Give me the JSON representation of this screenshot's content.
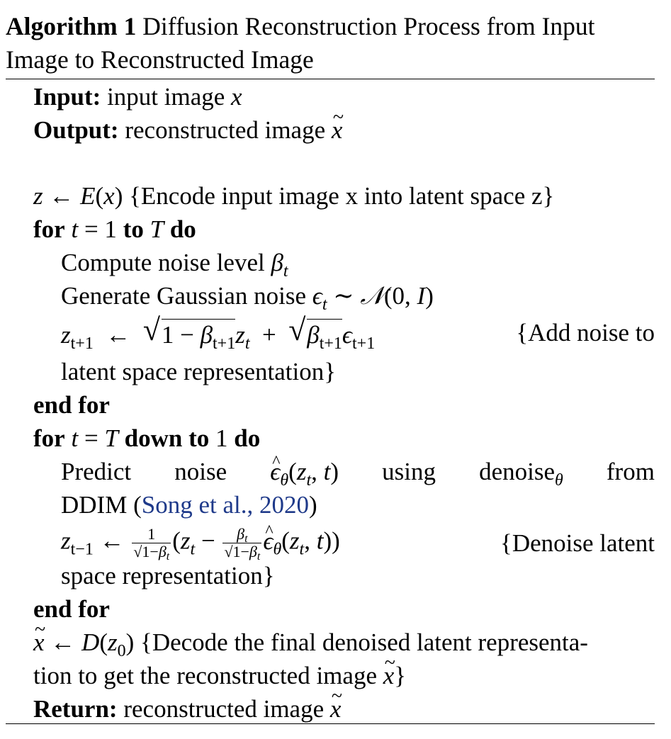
{
  "caption": {
    "label": "Algorithm 1",
    "title_line1": "Diffusion Reconstruction Process from Input",
    "title_line2": "Image to Reconstructed Image"
  },
  "io": {
    "input_label": "Input:",
    "input_text": "input image",
    "output_label": "Output:",
    "output_text": "reconstructed image"
  },
  "encode": {
    "comment": "{Encode input image x into latent space z}"
  },
  "loop1": {
    "for_kw": "for",
    "to_kw": "to",
    "do_kw": "do",
    "step1": "Compute noise level",
    "step2": "Generate Gaussian noise",
    "step3_comment_a": "{Add noise to",
    "step3_comment_b": "latent space representation}",
    "end_kw": "end for"
  },
  "loop2": {
    "for_kw": "for",
    "down_kw": "down to",
    "do_kw": "do",
    "predict_words": [
      "Predict",
      "noise",
      "using",
      "denoise",
      "from"
    ],
    "ddim": "DDIM",
    "citation": "Song et al., 2020",
    "denoise_comment_a": "{Denoise latent",
    "denoise_comment_b": "space representation}",
    "end_kw": "end for"
  },
  "decode": {
    "comment_a": "{Decode the final denoised latent representa-",
    "comment_b": "tion to get the reconstructed image"
  },
  "ret": {
    "label": "Return:",
    "text": "reconstructed image"
  }
}
